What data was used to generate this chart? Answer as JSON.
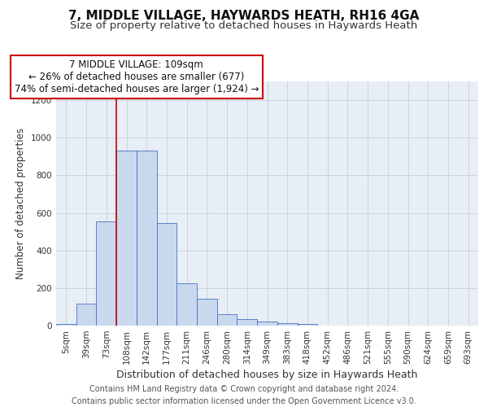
{
  "title": "7, MIDDLE VILLAGE, HAYWARDS HEATH, RH16 4GA",
  "subtitle": "Size of property relative to detached houses in Haywards Heath",
  "xlabel": "Distribution of detached houses by size in Haywards Heath",
  "ylabel": "Number of detached properties",
  "categories": [
    "5sqm",
    "39sqm",
    "73sqm",
    "108sqm",
    "142sqm",
    "177sqm",
    "211sqm",
    "246sqm",
    "280sqm",
    "314sqm",
    "349sqm",
    "383sqm",
    "418sqm",
    "452sqm",
    "486sqm",
    "521sqm",
    "555sqm",
    "590sqm",
    "624sqm",
    "659sqm",
    "693sqm"
  ],
  "bar_values": [
    10,
    115,
    555,
    930,
    930,
    545,
    225,
    145,
    60,
    35,
    20,
    13,
    8,
    0,
    0,
    0,
    0,
    0,
    0,
    0,
    0
  ],
  "bar_color": "#c9d9ed",
  "bar_edge_color": "#4472c4",
  "annotation_text": "7 MIDDLE VILLAGE: 109sqm\n← 26% of detached houses are smaller (677)\n74% of semi-detached houses are larger (1,924) →",
  "vline_x_index": 3,
  "vline_color": "#cc0000",
  "box_facecolor": "#ffffff",
  "box_edgecolor": "#cc0000",
  "ylim": [
    0,
    1300
  ],
  "yticks": [
    0,
    200,
    400,
    600,
    800,
    1000,
    1200
  ],
  "footer": "Contains HM Land Registry data © Crown copyright and database right 2024.\nContains public sector information licensed under the Open Government Licence v3.0.",
  "title_fontsize": 11,
  "subtitle_fontsize": 9.5,
  "xlabel_fontsize": 9,
  "ylabel_fontsize": 8.5,
  "tick_fontsize": 7.5,
  "annotation_fontsize": 8.5,
  "footer_fontsize": 7,
  "bg_color": "#e8eef5",
  "grid_color": "#c0c8d8"
}
